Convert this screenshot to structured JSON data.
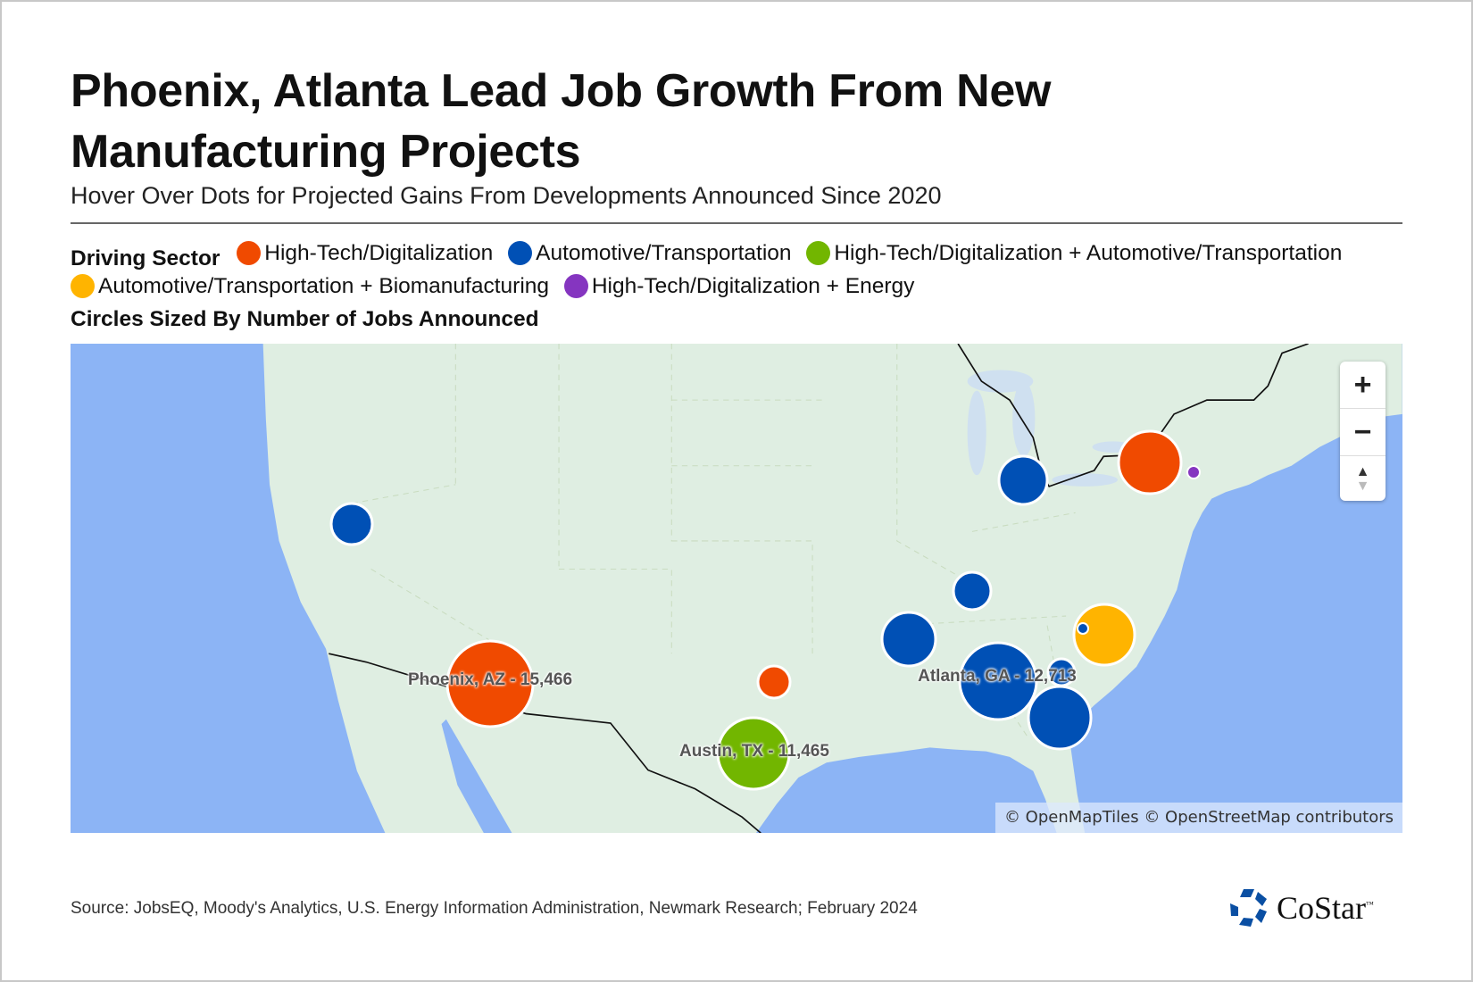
{
  "title": "Phoenix, Atlanta Lead Job Growth From New Manufacturing Projects",
  "subtitle": "Hover Over Dots for Projected Gains From Developments Announced Since 2020",
  "legend": {
    "heading": "Driving Sector",
    "sizing_note": "Circles Sized By Number of Jobs Announced",
    "items": [
      {
        "label": "High-Tech/Digitalization",
        "color": "#f04a00"
      },
      {
        "label": "Automotive/Transportation",
        "color": "#0050b5"
      },
      {
        "label": "High-Tech/Digitalization + Automotive/Transportation",
        "color": "#72b600"
      },
      {
        "label": "Automotive/Transportation + Biomanufacturing",
        "color": "#ffb400"
      },
      {
        "label": "High-Tech/Digitalization + Energy",
        "color": "#8535c0"
      }
    ]
  },
  "map": {
    "labels": {
      "phoenix": "Phoenix, AZ - 15,466",
      "austin": "Austin, TX - 11,465",
      "atlanta": "Atlanta, GA - 12,713"
    },
    "controls": {
      "zoom_in": "+",
      "zoom_out": "−",
      "compass_up": "▲",
      "compass_down": "▼"
    },
    "attribution": "© OpenMapTiles © OpenStreetMap contributors",
    "land_color": "#dfeee2",
    "water_color": "#8cb4f5"
  },
  "source": "Source: JobsEQ, Moody's Analytics, U.S. Energy Information Administration, Newmark Research; February 2024",
  "logo": {
    "name": "CoStar",
    "tm": "™"
  }
}
